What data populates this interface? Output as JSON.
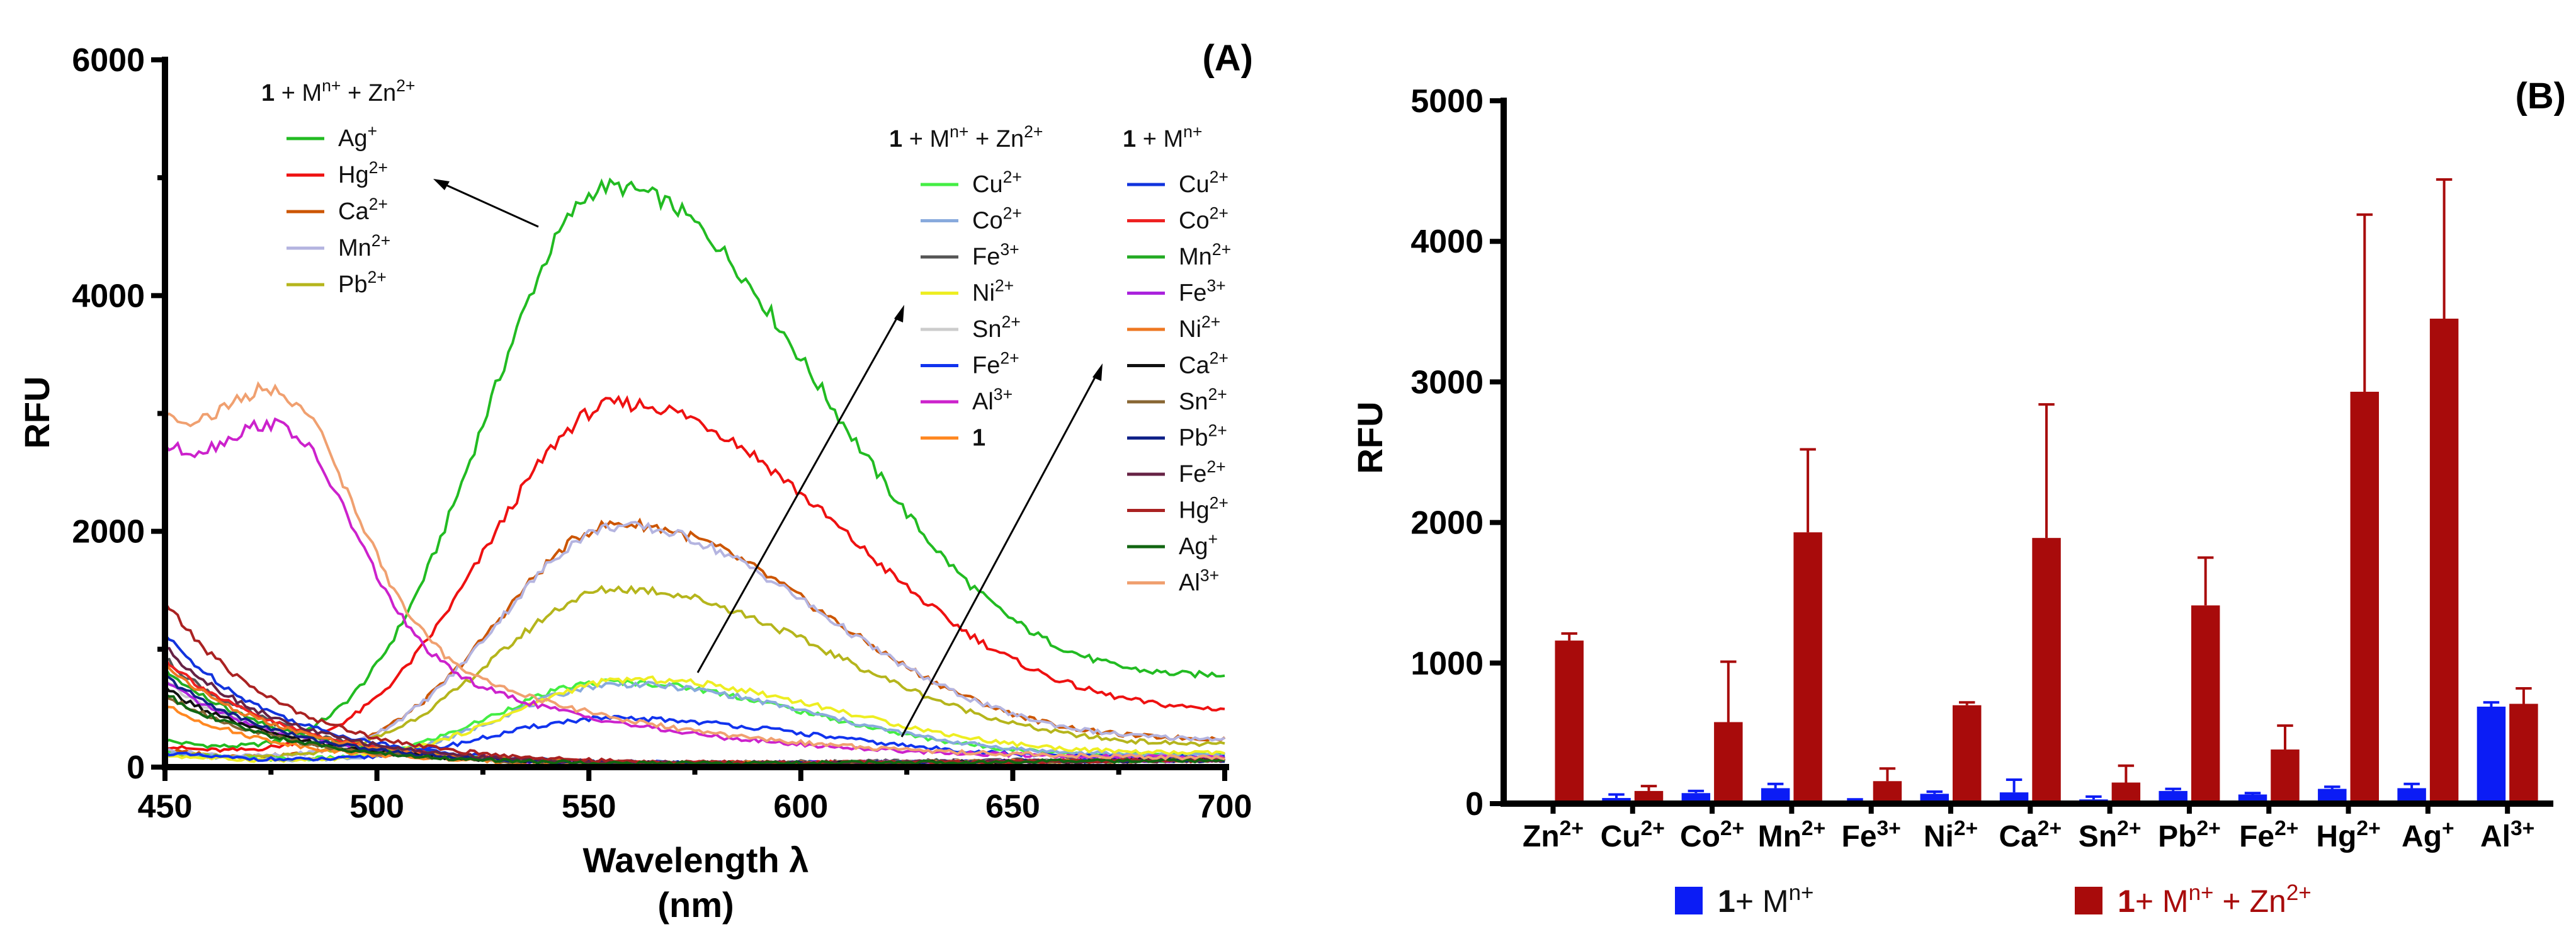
{
  "chart_data": [
    {
      "panel": "(A)",
      "type": "line",
      "xlabel": "Wavelength λ",
      "xlabel_unit": "(nm)",
      "ylabel": "RFU",
      "xlim": [
        450,
        700
      ],
      "ylim": [
        0,
        6000
      ],
      "xticks": [
        450,
        500,
        550,
        600,
        650,
        700
      ],
      "yticks": [
        0,
        2000,
        4000,
        6000
      ],
      "legend_groups": [
        {
          "title": {
            "bold": "1",
            "rest": " + M",
            "sup": "n+",
            "rest2": " + Zn",
            "sup2": "2+"
          },
          "series": [
            {
              "name": "Ag",
              "sup": "+",
              "color": "#22bb22",
              "baseline": 200,
              "peak": 4900,
              "peak_at": 555,
              "width": 52,
              "tail": 700
            },
            {
              "name": "Hg",
              "sup": "2+",
              "color": "#ee1111",
              "baseline": 150,
              "peak": 3060,
              "peak_at": 557,
              "width": 55,
              "tail": 400
            },
            {
              "name": "Ca",
              "sup": "2+",
              "color": "#cc5500",
              "baseline": 120,
              "peak": 2040,
              "peak_at": 557,
              "width": 50,
              "tail": 200
            },
            {
              "name": "Mn",
              "sup": "2+",
              "color": "#b4b4e0",
              "baseline": 120,
              "peak": 2020,
              "peak_at": 557,
              "width": 50,
              "tail": 200
            },
            {
              "name": "Pb",
              "sup": "2+",
              "color": "#b5b51c",
              "baseline": 100,
              "peak": 1490,
              "peak_at": 557,
              "width": 52,
              "tail": 150
            }
          ]
        },
        {
          "title": {
            "bold": "1",
            "rest": " + M",
            "sup": "n+",
            "rest2": " + Zn",
            "sup2": "2+"
          },
          "series": [
            {
              "name": "Cu",
              "sup": "2+",
              "color": "#44ee44",
              "baseline": 100,
              "peak": 700,
              "peak_at": 555,
              "width": 48,
              "tail": 80
            },
            {
              "name": "Co",
              "sup": "2+",
              "color": "#88aadd",
              "baseline": 100,
              "peak": 680,
              "peak_at": 557,
              "width": 48,
              "tail": 80
            },
            {
              "name": "Fe",
              "sup": "3+",
              "color": "#555555",
              "baseline": 900,
              "peak": 0,
              "peak_at": 555,
              "width": 50,
              "tail": 60
            },
            {
              "name": "Ni",
              "sup": "2+",
              "color": "#eeee22",
              "baseline": 80,
              "peak": 720,
              "peak_at": 560,
              "width": 50,
              "tail": 90
            },
            {
              "name": "Sn",
              "sup": "2+",
              "color": "#cccccc",
              "baseline": 700,
              "peak": 0,
              "peak_at": 555,
              "width": 50,
              "tail": 50
            },
            {
              "name": "Fe",
              "sup": "2+",
              "color": "#1133ee",
              "baseline": 100,
              "peak": 390,
              "peak_at": 555,
              "width": 50,
              "tail": 60
            },
            {
              "name": "Al",
              "sup": "3+",
              "color": "#cc22cc",
              "baseline": 2500,
              "peak": 0,
              "peak_at": 555,
              "width": 50,
              "tail": 30
            },
            {
              "name": "1",
              "sup": "",
              "bold": true,
              "color": "#ff8822",
              "baseline": 500,
              "peak": 0,
              "peak_at": 555,
              "width": 50,
              "tail": 40
            }
          ]
        },
        {
          "title": {
            "bold": "1",
            "rest": " + M",
            "sup": "n+",
            "rest2": "",
            "sup2": ""
          },
          "series": [
            {
              "name": "Cu",
              "sup": "2+",
              "color": "#1133dd",
              "baseline": 1100,
              "peak": 0,
              "peak_at": 555,
              "width": 50,
              "tail": 40
            },
            {
              "name": "Co",
              "sup": "2+",
              "color": "#ee2222",
              "baseline": 900,
              "peak": 0,
              "peak_at": 555,
              "width": 50,
              "tail": 40
            },
            {
              "name": "Mn",
              "sup": "2+",
              "color": "#22aa22",
              "baseline": 800,
              "peak": 0,
              "peak_at": 555,
              "width": 50,
              "tail": 40
            },
            {
              "name": "Fe",
              "sup": "3+",
              "color": "#aa22dd",
              "baseline": 700,
              "peak": 0,
              "peak_at": 555,
              "width": 50,
              "tail": 40
            },
            {
              "name": "Ni",
              "sup": "2+",
              "color": "#ee7722",
              "baseline": 850,
              "peak": 0,
              "peak_at": 555,
              "width": 50,
              "tail": 40
            },
            {
              "name": "Ca",
              "sup": "2+",
              "color": "#111111",
              "baseline": 650,
              "peak": 0,
              "peak_at": 555,
              "width": 50,
              "tail": 40
            },
            {
              "name": "Sn",
              "sup": "2+",
              "color": "#886633",
              "baseline": 600,
              "peak": 0,
              "peak_at": 555,
              "width": 50,
              "tail": 40
            },
            {
              "name": "Pb",
              "sup": "2+",
              "color": "#112288",
              "baseline": 750,
              "peak": 0,
              "peak_at": 555,
              "width": 50,
              "tail": 40
            },
            {
              "name": "Fe",
              "sup": "2+",
              "color": "#662244",
              "baseline": 1000,
              "peak": 0,
              "peak_at": 555,
              "width": 50,
              "tail": 40
            },
            {
              "name": "Hg",
              "sup": "2+",
              "color": "#aa2222",
              "baseline": 1380,
              "peak": 0,
              "peak_at": 555,
              "width": 50,
              "tail": 40
            },
            {
              "name": "Ag",
              "sup": "+",
              "color": "#116611",
              "baseline": 600,
              "peak": 0,
              "peak_at": 555,
              "width": 50,
              "tail": 40
            },
            {
              "name": "Al",
              "sup": "3+",
              "color": "#f0a070",
              "baseline": 2750,
              "peak": 0,
              "peak_at": 555,
              "width": 50,
              "tail": 30
            }
          ]
        }
      ]
    },
    {
      "panel": "(B)",
      "type": "bar",
      "ylabel": "RFU",
      "ylim": [
        0,
        5000
      ],
      "yticks": [
        0,
        1000,
        2000,
        3000,
        4000,
        5000
      ],
      "categories": [
        {
          "name": "Zn",
          "sup": "2+"
        },
        {
          "name": "Cu",
          "sup": "2+"
        },
        {
          "name": "Co",
          "sup": "2+"
        },
        {
          "name": "Mn",
          "sup": "2+"
        },
        {
          "name": "Fe",
          "sup": "3+"
        },
        {
          "name": "Ni",
          "sup": "2+"
        },
        {
          "name": "Ca",
          "sup": "2+"
        },
        {
          "name": "Sn",
          "sup": "2+"
        },
        {
          "name": "Pb",
          "sup": "2+"
        },
        {
          "name": "Fe",
          "sup": "2+"
        },
        {
          "name": "Hg",
          "sup": "2+"
        },
        {
          "name": "Ag",
          "sup": "+"
        },
        {
          "name": "Al",
          "sup": "3+"
        }
      ],
      "series": [
        {
          "name": "1+ M^n+",
          "color": "#0b1cf5",
          "values": [
            null,
            40,
            75,
            110,
            20,
            70,
            80,
            30,
            90,
            65,
            105,
            110,
            690
          ],
          "errors": [
            null,
            25,
            15,
            30,
            10,
            15,
            90,
            20,
            15,
            10,
            15,
            30,
            30
          ]
        },
        {
          "name": "1+ M^n+ + Zn^2+",
          "color": "#a80b0b",
          "values": [
            1160,
            90,
            580,
            1930,
            160,
            700,
            1890,
            150,
            1410,
            385,
            2930,
            3450,
            710
          ],
          "errors": [
            50,
            35,
            430,
            590,
            90,
            20,
            950,
            120,
            340,
            170,
            1260,
            990,
            110
          ]
        }
      ],
      "legend": [
        {
          "bold": "1",
          "rest": "+ M",
          "sup": "n+",
          "rest2": "",
          "sup2": "",
          "color": "#0b1cf5",
          "text_color": "#111111"
        },
        {
          "bold": "1",
          "rest": "+ M",
          "sup": "n+",
          "rest2": " + Zn",
          "sup2": "2+",
          "color": "#a80b0b",
          "text_color": "#a80b0b"
        }
      ]
    }
  ]
}
